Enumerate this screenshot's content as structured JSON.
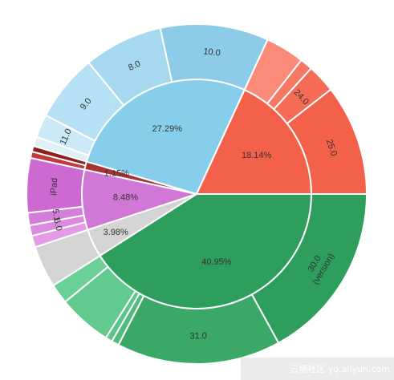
{
  "chart_data": {
    "type": "sunburst",
    "title": "",
    "inner_ring": [
      {
        "label": "40.95%",
        "value": 40.95,
        "color": "#2e9e5d"
      },
      {
        "label": "3.98%",
        "value": 3.98,
        "color": "#d4d4d4"
      },
      {
        "label": "8.48%",
        "value": 8.48,
        "color": "#d177d6"
      },
      {
        "label": "1.15%",
        "value": 1.15,
        "color": "#a83232"
      },
      {
        "label": "27.29%",
        "value": 27.29,
        "color": "#87ceeb"
      },
      {
        "label": "18.14%",
        "value": 18.14,
        "color": "#f4614a"
      }
    ],
    "outer_ring": [
      {
        "label": "30.0 (version)",
        "parent": "40.95%",
        "value": 17.0,
        "color": "#2e9e5d"
      },
      {
        "label": "31.0",
        "parent": "40.95%",
        "value": 15.6,
        "color": "#3aa968"
      },
      {
        "label": "",
        "parent": "40.95%",
        "value": 0.7,
        "color": "#52bb7c"
      },
      {
        "label": "",
        "parent": "40.95%",
        "value": 0.65,
        "color": "#5bc48a"
      },
      {
        "label": "",
        "parent": "40.95%",
        "value": 5.1,
        "color": "#62c98f"
      },
      {
        "label": "",
        "parent": "40.95%",
        "value": 1.9,
        "color": "#6bd098"
      },
      {
        "label": "",
        "parent": "3.98%",
        "value": 3.98,
        "color": "#d4d4d4"
      },
      {
        "label": "",
        "parent": "8.48%",
        "value": 1.1,
        "color": "#e39be8"
      },
      {
        "label": "6.0",
        "parent": "8.48%",
        "value": 1.0,
        "color": "#db8ae0"
      },
      {
        "label": "5.1",
        "parent": "8.48%",
        "value": 1.2,
        "color": "#d37ed8"
      },
      {
        "label": "iPad",
        "parent": "8.48%",
        "value": 5.18,
        "color": "#cc6ad2"
      },
      {
        "label": "",
        "parent": "1.15%",
        "value": 0.6,
        "color": "#c23b3b"
      },
      {
        "label": "",
        "parent": "1.15%",
        "value": 0.55,
        "color": "#8f2020"
      },
      {
        "label": "",
        "parent": "27.29%",
        "value": 0.9,
        "color": "#dff0f8"
      },
      {
        "label": "11.0",
        "parent": "27.29%",
        "value": 2.2,
        "color": "#cbe9f6"
      },
      {
        "label": "9.0",
        "parent": "27.29%",
        "value": 6.4,
        "color": "#b6e0f3"
      },
      {
        "label": "8.0",
        "parent": "27.29%",
        "value": 7.5,
        "color": "#a6d8ef"
      },
      {
        "label": "10.0",
        "parent": "27.29%",
        "value": 10.29,
        "color": "#8dcbe8"
      },
      {
        "label": "",
        "parent": "18.14%",
        "value": 3.7,
        "color": "#f98b78"
      },
      {
        "label": "",
        "parent": "18.14%",
        "value": 1.2,
        "color": "#f77763"
      },
      {
        "label": "24.0",
        "parent": "18.14%",
        "value": 2.7,
        "color": "#f56b56"
      },
      {
        "label": "25.0",
        "parent": "18.14%",
        "value": 10.54,
        "color": "#f4614a"
      }
    ]
  },
  "watermark": "云栖社区 yq.aliyun.com"
}
